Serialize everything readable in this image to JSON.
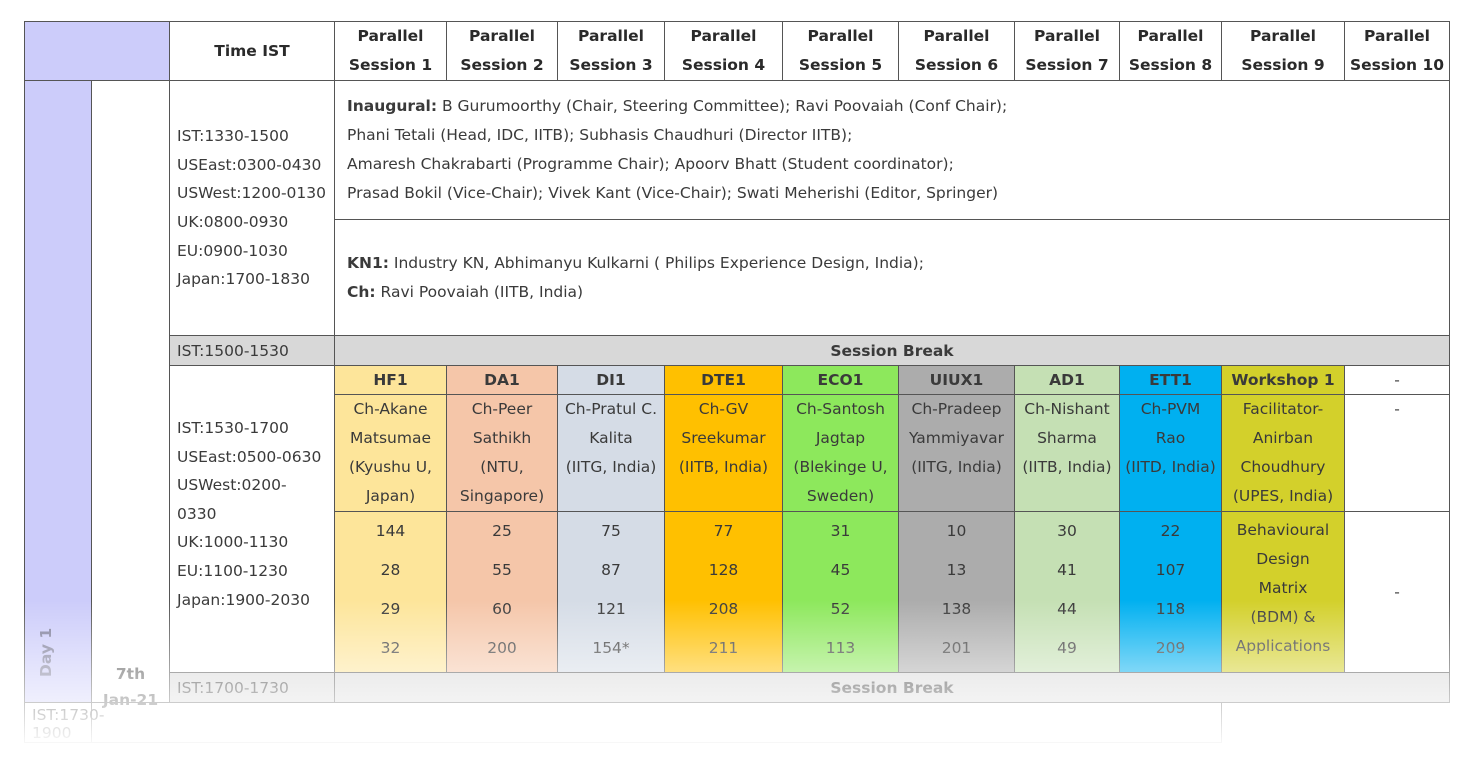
{
  "header": {
    "time_label": "Time IST",
    "sessions": [
      "Parallel Session 1",
      "Parallel Session 2",
      "Parallel Session 3",
      "Parallel Session 4",
      "Parallel Session 5",
      "Parallel Session 6",
      "Parallel Session 7",
      "Parallel Session 8",
      "Parallel Session 9",
      "Parallel Session 10"
    ]
  },
  "day": {
    "label": "Day 1",
    "date_line1": "7th",
    "date_line2": "Jan-21"
  },
  "slot1": {
    "times": [
      "IST:1330-1500",
      "USEast:0300-0430",
      "USWest:1200-0130",
      "UK:0800-0930",
      "EU:0900-1030",
      "Japan:1700-1830"
    ],
    "inaugural_label": "Inaugural:",
    "inaugural_lines": [
      "B Gurumoorthy (Chair, Steering Committee); Ravi Poovaiah (Conf Chair);",
      "Phani Tetali (Head, IDC, IITB); Subhasis Chaudhuri (Director IITB);",
      "Amaresh Chakrabarti (Programme Chair); Apoorv Bhatt (Student coordinator);",
      "Prasad Bokil (Vice-Chair); Vivek Kant (Vice-Chair); Swati Meherishi (Editor, Springer)"
    ],
    "kn1_label": "KN1:",
    "kn1_text": "Industry KN, Abhimanyu Kulkarni ( Philips Experience Design, India);",
    "ch_label": "Ch:",
    "ch_text": "Ravi Poovaiah (IITB, India)"
  },
  "break1": {
    "time": "IST:1500-1530",
    "label": "Session Break"
  },
  "slot2": {
    "times": [
      "IST:1530-1700",
      "USEast:0500-0630",
      "USWest:0200-",
      "0330",
      "UK:1000-1130",
      "EU:1100-1230",
      "Japan:1900-2030"
    ],
    "sessions": [
      {
        "code": "HF1",
        "chair": [
          "Ch-Akane",
          "Matsumae",
          "(Kyushu U,",
          "Japan)"
        ],
        "papers": [
          "144",
          "28",
          "29",
          "32"
        ],
        "color": "#fde59a"
      },
      {
        "code": "DA1",
        "chair": [
          "Ch-Peer",
          "Sathikh",
          "(NTU,",
          "Singapore)"
        ],
        "papers": [
          "25",
          "55",
          "60",
          "200"
        ],
        "color": "#f5c6a9"
      },
      {
        "code": "DI1",
        "chair": [
          "Ch-Pratul C.",
          "Kalita",
          "(IITG, India)"
        ],
        "papers": [
          "75",
          "87",
          "121",
          "154*"
        ],
        "color": "#d5dce6"
      },
      {
        "code": "DTE1",
        "chair": [
          "Ch-GV",
          "Sreekumar",
          "(IITB, India)"
        ],
        "papers": [
          "77",
          "128",
          "208",
          "211"
        ],
        "color": "#ffc000"
      },
      {
        "code": "ECO1",
        "chair": [
          "Ch-Santosh",
          "Jagtap",
          "(Blekinge U,",
          "Sweden)"
        ],
        "papers": [
          "31",
          "45",
          "52",
          "113"
        ],
        "color": "#8de85c"
      },
      {
        "code": "UIUX1",
        "chair": [
          "Ch-Pradeep",
          "Yammiyavar",
          "(IITG, India)"
        ],
        "papers": [
          "10",
          "13",
          "138",
          "201"
        ],
        "color": "#acacac"
      },
      {
        "code": "AD1",
        "chair": [
          "Ch-Nishant",
          "Sharma",
          "(IITB, India)"
        ],
        "papers": [
          "30",
          "41",
          "44",
          "49"
        ],
        "color": "#c5e0b4"
      },
      {
        "code": "ETT1",
        "chair": [
          "Ch-PVM",
          "Rao",
          "(IITD, India)"
        ],
        "papers": [
          "22",
          "107",
          "118",
          "209"
        ],
        "color": "#00b0f0"
      },
      {
        "code": "Workshop 1",
        "chair": [
          "Facilitator-",
          "Anirban",
          "Choudhury",
          "(UPES, India)"
        ],
        "papers": [
          "Behavioural",
          "Design",
          "Matrix",
          "(BDM) &",
          "Applications"
        ],
        "color": "#d3d02b"
      }
    ],
    "s10": "-"
  },
  "break2": {
    "time": "IST:1700-1730",
    "label": "Session Break"
  },
  "slot3": {
    "time": "IST:1730-1900"
  }
}
